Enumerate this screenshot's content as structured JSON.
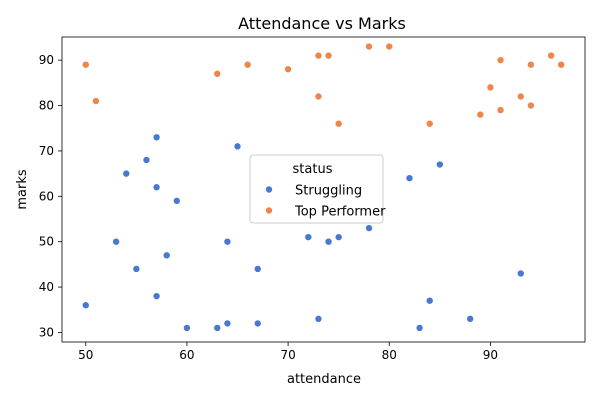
{
  "chart_data": {
    "type": "scatter",
    "title": "Attendance vs Marks",
    "xlabel": "attendance",
    "ylabel": "marks",
    "xlim": [
      47.65,
      99.35
    ],
    "ylim": [
      27.9,
      95.1
    ],
    "xticks": [
      50,
      60,
      70,
      80,
      90
    ],
    "yticks": [
      30,
      40,
      50,
      60,
      70,
      80,
      90
    ],
    "grid": false,
    "legend": {
      "title": "status",
      "placement": "center-right"
    },
    "series": [
      {
        "name": "Struggling",
        "color": "#4878d0",
        "points": [
          [
            50,
            36
          ],
          [
            53,
            50
          ],
          [
            54,
            65
          ],
          [
            55,
            44
          ],
          [
            56,
            68
          ],
          [
            57,
            73
          ],
          [
            57,
            62
          ],
          [
            57,
            38
          ],
          [
            58,
            47
          ],
          [
            59,
            59
          ],
          [
            60,
            31
          ],
          [
            63,
            31
          ],
          [
            64,
            50
          ],
          [
            64,
            32
          ],
          [
            65,
            71
          ],
          [
            67,
            44
          ],
          [
            67,
            32
          ],
          [
            72,
            51
          ],
          [
            73,
            33
          ],
          [
            74,
            50
          ],
          [
            75,
            51
          ],
          [
            78,
            53
          ],
          [
            82,
            64
          ],
          [
            83,
            31
          ],
          [
            84,
            37
          ],
          [
            85,
            67
          ],
          [
            88,
            33
          ],
          [
            93,
            43
          ]
        ]
      },
      {
        "name": "Top Performer",
        "color": "#ee854a",
        "points": [
          [
            50,
            89
          ],
          [
            51,
            81
          ],
          [
            63,
            87
          ],
          [
            66,
            89
          ],
          [
            70,
            88
          ],
          [
            73,
            91
          ],
          [
            73,
            82
          ],
          [
            74,
            91
          ],
          [
            75,
            76
          ],
          [
            78,
            93
          ],
          [
            80,
            93
          ],
          [
            84,
            76
          ],
          [
            89,
            78
          ],
          [
            90,
            84
          ],
          [
            91,
            90
          ],
          [
            91,
            79
          ],
          [
            93,
            82
          ],
          [
            94,
            89
          ],
          [
            94,
            80
          ],
          [
            96,
            91
          ],
          [
            97,
            89
          ]
        ]
      }
    ]
  }
}
